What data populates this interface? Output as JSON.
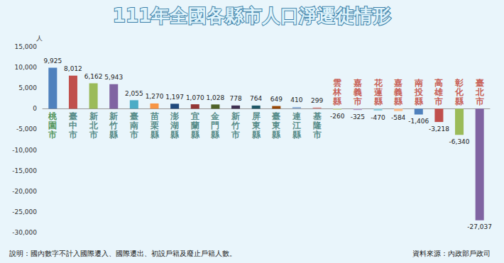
{
  "chart_data": {
    "type": "bar",
    "title": "111年全國各縣市人口淨遷徙情形",
    "ylabel": "人",
    "annotations": [
      "說明：國內數字不計入國際遷入、國際遷出、初設戶籍及廢止戶籍人數。",
      "資料來源：內政部戶政司"
    ],
    "categories": [
      "桃園市",
      "臺中市",
      "新北市",
      "新竹縣",
      "臺南市",
      "苗栗縣",
      "澎湖縣",
      "宜蘭縣",
      "金門縣",
      "新竹市",
      "屏東縣",
      "臺東縣",
      "連江縣",
      "基隆市",
      "雲林縣",
      "嘉義市",
      "花蓮縣",
      "嘉義縣",
      "南投縣",
      "高雄市",
      "彰化縣",
      "臺北市"
    ],
    "values": [
      9925,
      8012,
      6162,
      5943,
      2055,
      1270,
      1197,
      1070,
      1028,
      778,
      764,
      649,
      410,
      299,
      -260,
      -325,
      -470,
      -584,
      -1406,
      -3218,
      -6340,
      -27037
    ],
    "value_labels": [
      "9,925",
      "8,012",
      "6,162",
      "5,943",
      "2,055",
      "1,270",
      "1,197",
      "1,070",
      "1,028",
      "778",
      "764",
      "649",
      "410",
      "299",
      "-260",
      "-325",
      "-470",
      "-584",
      "-1,406",
      "-3,218",
      "-6,340",
      "-27,037"
    ],
    "colors": [
      "#4f81bd",
      "#c0504d",
      "#9bbb59",
      "#8064a2",
      "#4bacc6",
      "#f79646",
      "#1f497d",
      "#943634",
      "#4f6228",
      "#3f3151",
      "#205867",
      "#974806",
      "#95b3d7",
      "#d99694",
      "#c3d69b",
      "#b2a2c7",
      "#92cddc",
      "#fac08f",
      "#4f81bd",
      "#c0504d",
      "#9bbb59",
      "#8064a2"
    ],
    "ylim": [
      -30000,
      15000
    ],
    "yticks": [
      {
        "value": -30000,
        "label": "-30,000"
      },
      {
        "value": -25000,
        "label": "-25,000"
      },
      {
        "value": -20000,
        "label": "-20,000"
      },
      {
        "value": -15000,
        "label": "-15,000"
      },
      {
        "value": -10000,
        "label": "-10,000"
      },
      {
        "value": -5000,
        "label": "-5,000"
      },
      0,
      {
        "value": 5000,
        "label": "5,000"
      },
      {
        "value": 10000,
        "label": "10,000"
      },
      {
        "value": 15000,
        "label": "15,000"
      }
    ],
    "data_labels": true,
    "grid": false
  }
}
